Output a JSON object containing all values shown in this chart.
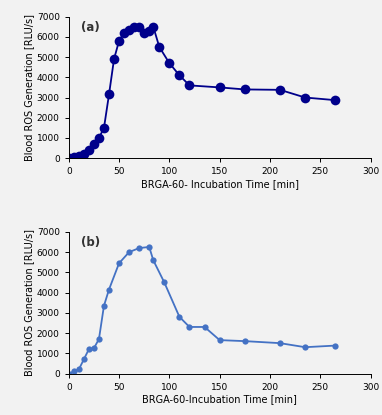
{
  "panel_a": {
    "x": [
      0,
      5,
      10,
      15,
      20,
      25,
      30,
      35,
      40,
      45,
      50,
      55,
      60,
      65,
      70,
      75,
      80,
      84,
      90,
      100,
      110,
      120,
      150,
      175,
      210,
      235,
      265
    ],
    "y": [
      0,
      50,
      100,
      200,
      400,
      700,
      1000,
      1500,
      3150,
      4900,
      5800,
      6200,
      6350,
      6500,
      6500,
      6200,
      6300,
      6502,
      5500,
      4700,
      4100,
      3600,
      3500,
      3400,
      3380,
      3000,
      2870
    ],
    "color": "#00008B",
    "marker": "o",
    "markersize": 7,
    "linewidth": 1.3,
    "label": "(a)",
    "xlabel": "BRGA-60- Incubation Time [min]",
    "ylabel": "Blood ROS Generation [RLU/s]",
    "ylim": [
      0,
      7000
    ],
    "xlim": [
      0,
      300
    ],
    "yticks": [
      0,
      1000,
      2000,
      3000,
      4000,
      5000,
      6000,
      7000
    ],
    "xticks": [
      0,
      50,
      100,
      150,
      200,
      250,
      300
    ]
  },
  "panel_b": {
    "x": [
      0,
      5,
      10,
      15,
      20,
      25,
      30,
      35,
      40,
      50,
      60,
      70,
      80,
      84,
      95,
      110,
      120,
      135,
      150,
      175,
      210,
      235,
      265
    ],
    "y": [
      0,
      100,
      200,
      700,
      1200,
      1250,
      1700,
      3350,
      4150,
      5450,
      6000,
      6200,
      6254,
      5600,
      4500,
      2800,
      2300,
      2300,
      1650,
      1600,
      1500,
      1300,
      1380
    ],
    "color": "#4472C4",
    "marker": "o",
    "markersize": 4.5,
    "linewidth": 1.3,
    "label": "(b)",
    "xlabel": "BRGA-60-Incubation Time [min]",
    "ylabel": "Blood ROS Generation [RLU/s]",
    "ylim": [
      0,
      7000
    ],
    "xlim": [
      0,
      300
    ],
    "yticks": [
      0,
      1000,
      2000,
      3000,
      4000,
      5000,
      6000,
      7000
    ],
    "xticks": [
      0,
      50,
      100,
      150,
      200,
      250,
      300
    ]
  },
  "background_color": "#f2f2f2"
}
